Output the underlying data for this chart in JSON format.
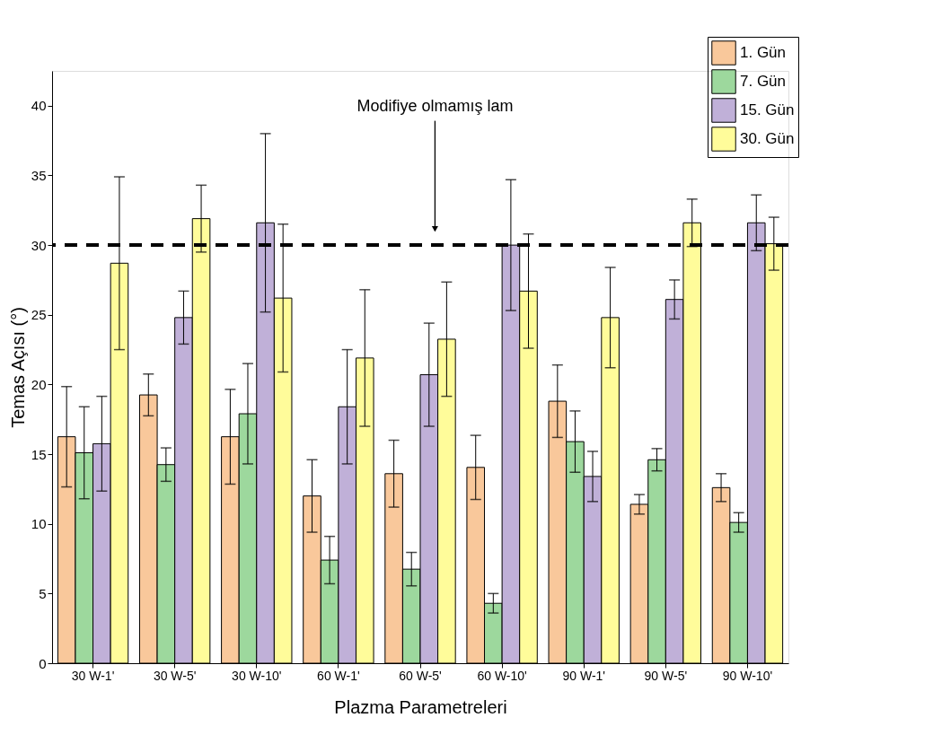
{
  "chart_data": {
    "type": "bar",
    "xlabel": "Plazma Parametreleri",
    "ylabel": "Temas Açısı (°)",
    "categories": [
      "30 W-1'",
      "30 W-5'",
      "30 W-10'",
      "60 W-1'",
      "60 W-5'",
      "60 W-10'",
      "90 W-1'",
      "90 W-5'",
      "90 W-10'"
    ],
    "series": [
      {
        "name": "1. Gün",
        "color": "#f9c89b",
        "values": [
          16.25,
          19.25,
          16.25,
          12,
          13.6,
          14.05,
          18.8,
          11.4,
          12.6
        ],
        "errors": [
          3.6,
          1.5,
          3.4,
          2.6,
          2.4,
          2.3,
          2.6,
          0.7,
          1.0
        ]
      },
      {
        "name": "7. Gün",
        "color": "#9dd89d",
        "values": [
          15.1,
          14.25,
          17.9,
          7.4,
          6.75,
          4.3,
          15.9,
          14.6,
          10.1
        ],
        "errors": [
          3.3,
          1.2,
          3.6,
          1.7,
          1.2,
          0.7,
          2.2,
          0.8,
          0.7
        ]
      },
      {
        "name": "15. Gün",
        "color": "#c0b0d8",
        "values": [
          15.75,
          24.8,
          31.6,
          18.4,
          20.7,
          30,
          13.4,
          26.1,
          31.6
        ],
        "errors": [
          3.4,
          1.9,
          6.4,
          4.1,
          3.7,
          4.7,
          1.8,
          1.4,
          2.0
        ]
      },
      {
        "name": "30. Gün",
        "color": "#fffc9a",
        "values": [
          28.7,
          31.9,
          26.2,
          21.9,
          23.25,
          26.7,
          24.8,
          31.6,
          30.1
        ],
        "errors": [
          6.2,
          2.4,
          5.3,
          4.9,
          4.1,
          4.1,
          3.6,
          1.7,
          1.9
        ]
      }
    ],
    "ylim": [
      0,
      42.5
    ],
    "yticks": [
      0,
      5,
      10,
      15,
      20,
      25,
      30,
      35,
      40
    ],
    "ref_lines": [
      {
        "axis": "y",
        "value": 30,
        "color": "#000000",
        "line_style": "dashed"
      }
    ],
    "annotations": [
      "Modifiye olmamış lam"
    ],
    "legend": "top right",
    "grid": false
  }
}
